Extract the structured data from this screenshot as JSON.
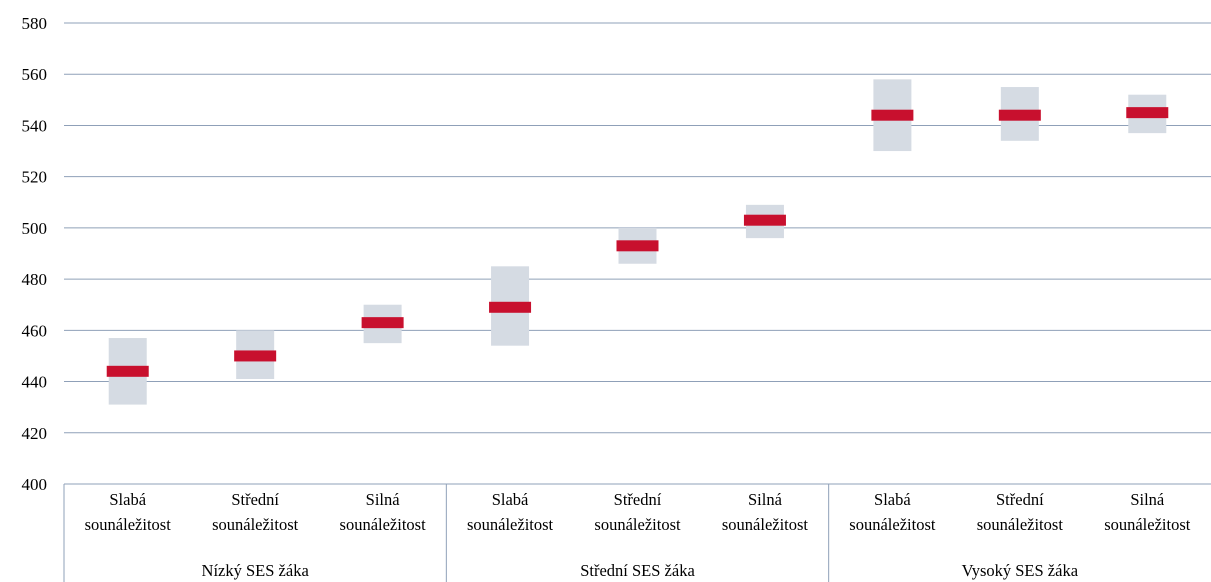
{
  "chart_data": {
    "type": "range",
    "ylim": [
      400,
      580
    ],
    "ytick_step": 20,
    "grid": true,
    "groups": [
      {
        "label": "Nízký SES žáka",
        "items": [
          {
            "label_line1": "Slabá",
            "label_line2": "sounáležitost",
            "mean": 444,
            "low": 431,
            "high": 457
          },
          {
            "label_line1": "Střední",
            "label_line2": "sounáležitost",
            "mean": 450,
            "low": 441,
            "high": 460
          },
          {
            "label_line1": "Silná",
            "label_line2": "sounáležitost",
            "mean": 463,
            "low": 455,
            "high": 470
          }
        ]
      },
      {
        "label": "Střední SES žáka",
        "items": [
          {
            "label_line1": "Slabá",
            "label_line2": "sounáležitost",
            "mean": 469,
            "low": 454,
            "high": 485
          },
          {
            "label_line1": "Střední",
            "label_line2": "sounáležitost",
            "mean": 493,
            "low": 486,
            "high": 500
          },
          {
            "label_line1": "Silná",
            "label_line2": "sounáležitost",
            "mean": 503,
            "low": 496,
            "high": 509
          }
        ]
      },
      {
        "label": "Vysoký SES žáka",
        "items": [
          {
            "label_line1": "Slabá",
            "label_line2": "sounáležitost",
            "mean": 544,
            "low": 530,
            "high": 558
          },
          {
            "label_line1": "Střední",
            "label_line2": "sounáležitost",
            "mean": 544,
            "low": 534,
            "high": 555
          },
          {
            "label_line1": "Silná",
            "label_line2": "sounáležitost",
            "mean": 545,
            "low": 537,
            "high": 552
          }
        ]
      }
    ],
    "colors": {
      "mean_marker": "#c8102e",
      "range_band": "#d5dbe3",
      "gridline": "#8fa0b8",
      "axis": "#8fa0b8"
    }
  }
}
